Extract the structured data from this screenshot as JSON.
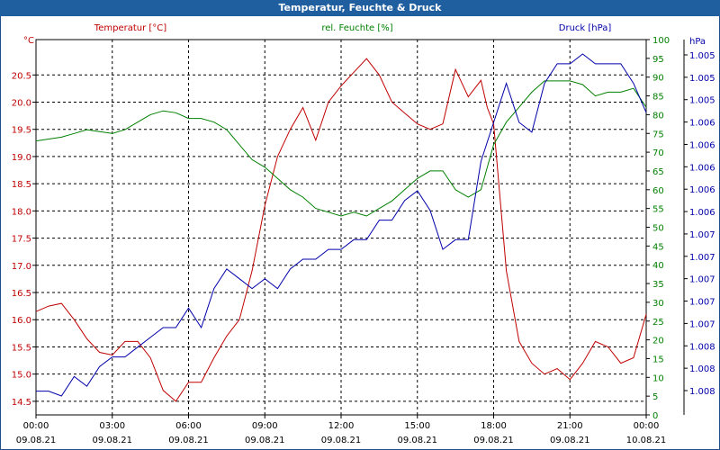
{
  "window": {
    "title": "Temperatur, Feuchte & Druck"
  },
  "chart_data": {
    "type": "line",
    "title": "Temperatur, Feuchte & Druck",
    "x_ticks": [
      {
        "time": "00:00",
        "date": "09.08.21"
      },
      {
        "time": "03:00",
        "date": "09.08.21"
      },
      {
        "time": "06:00",
        "date": "09.08.21"
      },
      {
        "time": "09:00",
        "date": "09.08.21"
      },
      {
        "time": "12:00",
        "date": "09.08.21"
      },
      {
        "time": "15:00",
        "date": "09.08.21"
      },
      {
        "time": "18:00",
        "date": "09.08.21"
      },
      {
        "time": "21:00",
        "date": "09.08.21"
      },
      {
        "time": "00:00",
        "date": "10.08.21"
      }
    ],
    "axes": {
      "temperature": {
        "label": "Temperatur [°C]",
        "unit": "°C",
        "color": "#c00000",
        "ylim": [
          14.25,
          21.15
        ],
        "ticks": [
          "14.5",
          "15.0",
          "15.5",
          "16.0",
          "16.5",
          "17.0",
          "17.5",
          "18.0",
          "18.5",
          "19.0",
          "19.5",
          "20.0",
          "20.5"
        ]
      },
      "humidity": {
        "label": "rel. Feuchte [%]",
        "unit": "%",
        "color": "#008000",
        "ylim": [
          0,
          100
        ],
        "ticks": [
          "0",
          "5",
          "10",
          "15",
          "20",
          "25",
          "30",
          "35",
          "40",
          "45",
          "50",
          "55",
          "60",
          "65",
          "70",
          "75",
          "80",
          "85",
          "90",
          "95",
          "100"
        ]
      },
      "pressure": {
        "label": "Druck [hPa]",
        "unit": "hPa",
        "color": "#0000aa",
        "ticks": [
          "1.005",
          "1.005",
          "1.005",
          "1.006",
          "1.006",
          "1.006",
          "1.006",
          "1.006",
          "1.007",
          "1.007",
          "1.007",
          "1.007",
          "1.007",
          "1.008",
          "1.008",
          "1.008"
        ]
      }
    },
    "series": [
      {
        "name": "Temperatur [°C]",
        "axis": "temperature",
        "color": "#c00000",
        "x_hours": [
          0,
          0.5,
          1,
          1.5,
          2,
          2.5,
          3,
          3.5,
          4,
          4.5,
          5,
          5.5,
          6,
          6.5,
          7,
          7.5,
          8,
          8.5,
          9,
          9.5,
          10,
          10.5,
          11,
          11.5,
          12,
          12.5,
          13,
          13.5,
          14,
          14.5,
          15,
          15.5,
          16,
          16.5,
          17,
          17.5,
          17.75,
          18,
          18.5,
          19,
          19.5,
          20,
          20.5,
          21,
          21.5,
          22,
          22.5,
          23,
          23.5,
          24
        ],
        "values": [
          16.15,
          16.25,
          16.3,
          16.0,
          15.65,
          15.4,
          15.35,
          15.6,
          15.6,
          15.3,
          14.7,
          14.5,
          14.85,
          14.85,
          15.3,
          15.7,
          16.0,
          16.9,
          18.1,
          19.0,
          19.5,
          19.9,
          19.3,
          20.0,
          20.3,
          20.55,
          20.8,
          20.5,
          20.0,
          19.8,
          19.6,
          19.5,
          19.6,
          20.6,
          20.1,
          20.4,
          19.9,
          19.6,
          16.9,
          15.6,
          15.2,
          15.0,
          15.1,
          14.9,
          15.2,
          15.6,
          15.5,
          15.2,
          15.3,
          16.1
        ]
      },
      {
        "name": "rel. Feuchte [%]",
        "axis": "humidity",
        "color": "#008000",
        "x_hours": [
          0,
          0.5,
          1,
          1.5,
          2,
          2.5,
          3,
          3.5,
          4,
          4.5,
          5,
          5.5,
          6,
          6.5,
          7,
          7.5,
          8,
          8.5,
          9,
          9.5,
          10,
          10.5,
          11,
          11.5,
          12,
          12.5,
          13,
          13.5,
          14,
          14.5,
          15,
          15.5,
          16,
          16.5,
          17,
          17.5,
          18,
          18.5,
          19,
          19.5,
          20,
          20.5,
          21,
          21.5,
          22,
          22.5,
          23,
          23.5,
          24
        ],
        "values": [
          73,
          73.5,
          74,
          75,
          76,
          75.5,
          75,
          76,
          78,
          80,
          81,
          80.5,
          79,
          79,
          78,
          76,
          72,
          68,
          66,
          63,
          60,
          58,
          55,
          54,
          53,
          54,
          53,
          55,
          57,
          60,
          63,
          65,
          65,
          60,
          58,
          60,
          72,
          78,
          82,
          86,
          89,
          89,
          89,
          88,
          85,
          86,
          86,
          87,
          82
        ]
      },
      {
        "name": "Druck [hPa]",
        "axis": "pressure",
        "color": "#0000aa",
        "x_hours": [
          0,
          0.5,
          1,
          1.5,
          2,
          2.5,
          3,
          3.5,
          4,
          4.5,
          5,
          5.5,
          6,
          6.5,
          7,
          7.5,
          8,
          8.5,
          9,
          9.5,
          10,
          10.5,
          11,
          11.5,
          12,
          12.5,
          13,
          13.5,
          14,
          14.5,
          15,
          15.5,
          16,
          16.5,
          17,
          17.5,
          18,
          18.5,
          19,
          19.5,
          20,
          20.5,
          21,
          21.5,
          22,
          22.5,
          23,
          23.5,
          24
        ],
        "values": [
          1.00495,
          1.00495,
          1.0049,
          1.0051,
          1.005,
          1.0052,
          1.0053,
          1.0053,
          1.0054,
          1.0055,
          1.0056,
          1.0056,
          1.0058,
          1.0056,
          1.006,
          1.0062,
          1.0061,
          1.006,
          1.0061,
          1.006,
          1.0062,
          1.0063,
          1.0063,
          1.0064,
          1.0064,
          1.0065,
          1.0065,
          1.0067,
          1.0067,
          1.0069,
          1.007,
          1.0068,
          1.0064,
          1.0065,
          1.0065,
          1.0073,
          1.0077,
          1.0081,
          1.0077,
          1.0076,
          1.0081,
          1.0083,
          1.0083,
          1.0084,
          1.0083,
          1.0083,
          1.0083,
          1.0081,
          1.0078
        ]
      }
    ]
  }
}
